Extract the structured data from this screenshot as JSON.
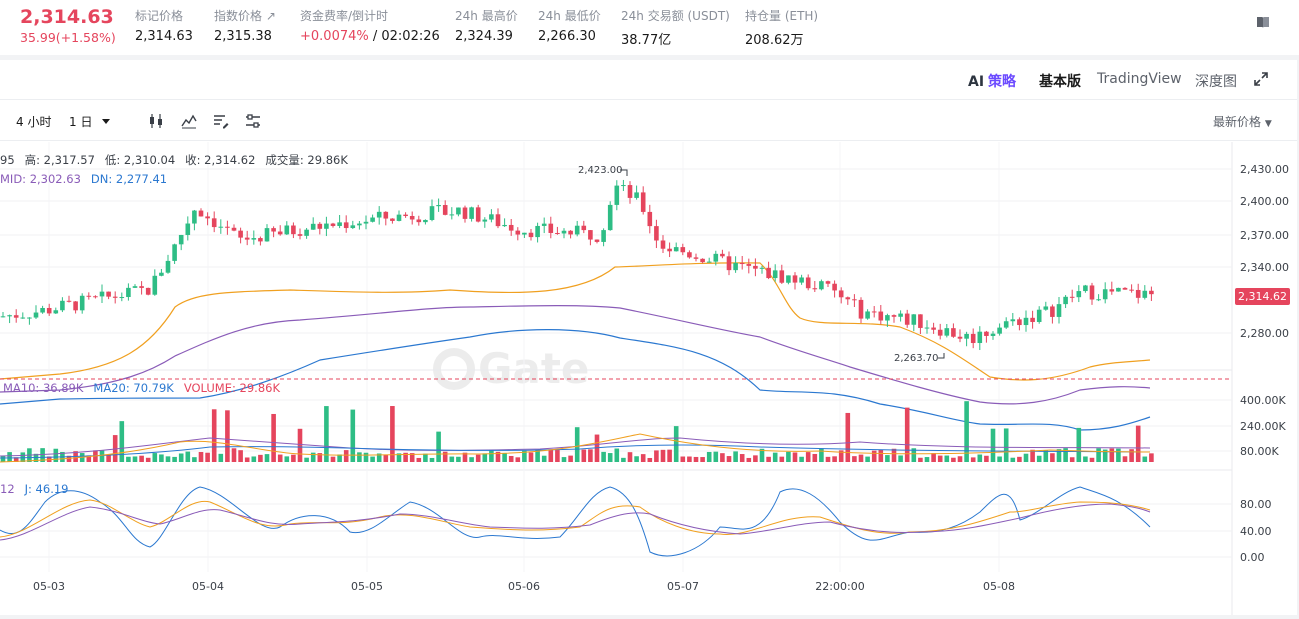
{
  "ticker": {
    "price": "2,314.63",
    "change": "35.99(+1.58%)",
    "stats": [
      {
        "label": "标记价格",
        "value": "2,314.63"
      },
      {
        "label": "指数价格 ↗",
        "value": "2,315.38"
      },
      {
        "label": "资金费率/倒计时",
        "value_up": "+0.0074%",
        "value": " / 02:02:26"
      },
      {
        "label": "24h 最高价",
        "value": "2,324.39"
      },
      {
        "label": "24h 最低价",
        "value": "2,266.30"
      },
      {
        "label": "24h 交易额 (USDT)",
        "value": "38.77亿"
      },
      {
        "label": "持仓量 (ETH)",
        "value": "208.62万"
      }
    ]
  },
  "views": {
    "ai_prefix": "AI",
    "ai_label": "策略",
    "basic": "基本版",
    "tradingview": "TradingView",
    "depth": "深度图"
  },
  "toolbar": {
    "interval_4h": "4 小时",
    "interval_1d": "1 日",
    "latest_price": "最新价格"
  },
  "legends": {
    "ohlc": {
      "open_tail": "95",
      "high": "高: 2,317.57",
      "low": "低: 2,310.04",
      "close": "收: 2,314.62",
      "volume": "成交量: 29.86K"
    },
    "boll": {
      "mid": "MID: 2,302.63",
      "dn": "DN: 2,277.41"
    },
    "vol": {
      "ma10": "MA10: 36.89K",
      "ma20": "MA20: 70.79K",
      "volume": "VOLUME: 29.86K"
    },
    "kdj": {
      "d_tail": "12",
      "j": "J: 46.19"
    }
  },
  "axes": {
    "price_ticks": [
      "2,430.00",
      "2,400.00",
      "2,370.00",
      "2,340.00",
      "2,280.00"
    ],
    "volume_ticks": [
      "400.00K",
      "240.00K",
      "80.00K"
    ],
    "kdj_ticks": [
      "80.00",
      "40.00",
      "0.00"
    ],
    "time_ticks": [
      "05-03",
      "05-04",
      "05-05",
      "05-06",
      "05-07",
      "22:00:00",
      "05-08"
    ],
    "high_marker": "2,423.00",
    "low_marker": "2,263.70",
    "last_price": "2,314.62"
  },
  "watermark": "Gate",
  "colors": {
    "up": "#2ebd85",
    "down": "#e5455d",
    "upper_band": "#f0a020",
    "mid_band": "#8a5cb8",
    "lower_band": "#2b78d0"
  }
}
